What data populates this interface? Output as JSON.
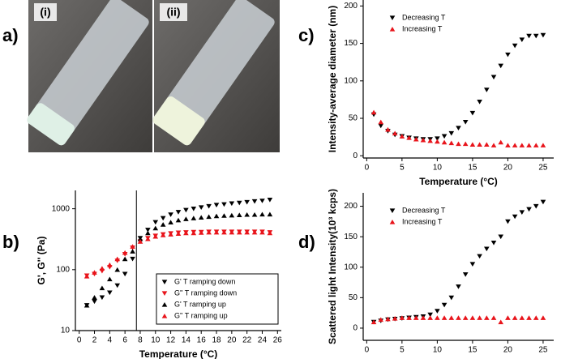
{
  "photos": {
    "panel_label": "a)",
    "labels": [
      "(i)",
      "(ii)"
    ]
  },
  "chart_data": [
    {
      "type": "scatter",
      "panel_label": "b)",
      "xlabel": "Temperature (°C)",
      "ylabel": "G', G'' (Pa)",
      "log_y": true,
      "legend": "lower right",
      "vline": 7.5,
      "xlim": [
        -0.5,
        26.5
      ],
      "ylim": [
        10,
        2000
      ],
      "xticks": [
        0,
        2,
        4,
        6,
        8,
        10,
        12,
        14,
        16,
        18,
        20,
        22,
        24,
        26
      ],
      "yticks": [
        10,
        100,
        1000
      ],
      "x": [
        1,
        2,
        3,
        4,
        5,
        6,
        7,
        8,
        9,
        10,
        11,
        12,
        13,
        14,
        15,
        16,
        17,
        18,
        19,
        20,
        21,
        22,
        23,
        24,
        25
      ],
      "series": [
        {
          "name": "G' T ramping down",
          "color": "#000000",
          "marker": "down",
          "values": [
            26,
            30,
            35,
            42,
            55,
            85,
            150,
            330,
            450,
            600,
            700,
            800,
            880,
            950,
            1000,
            1050,
            1100,
            1150,
            1180,
            1220,
            1250,
            1280,
            1320,
            1350,
            1400
          ]
        },
        {
          "name": "G'' T ramping down",
          "color": "#e8141b",
          "marker": "down",
          "values": [
            80,
            85,
            95,
            110,
            140,
            180,
            230,
            290,
            330,
            360,
            380,
            395,
            405,
            410,
            415,
            415,
            420,
            420,
            420,
            420,
            420,
            420,
            420,
            420,
            410
          ]
        },
        {
          "name": "G' T ramping up",
          "color": "#000000",
          "marker": "up",
          "values": [
            26,
            35,
            50,
            70,
            100,
            150,
            200,
            320,
            400,
            480,
            550,
            600,
            650,
            680,
            700,
            720,
            740,
            760,
            770,
            780,
            790,
            800,
            800,
            810,
            810
          ]
        },
        {
          "name": "G'' T ramping up",
          "color": "#e8141b",
          "marker": "up",
          "values": [
            78,
            90,
            105,
            120,
            150,
            190,
            240,
            290,
            320,
            350,
            370,
            380,
            390,
            400,
            400,
            405,
            410,
            410,
            410,
            410,
            410,
            410,
            410,
            410,
            400
          ]
        }
      ]
    },
    {
      "type": "scatter",
      "panel_label": "c)",
      "xlabel": "Temperature (°C)",
      "ylabel": "Intensity-average diameter (nm)",
      "log_y": false,
      "legend": "upper left",
      "xlim": [
        -0.5,
        26.5
      ],
      "ylim": [
        -3,
        208
      ],
      "xticks": [
        0,
        5,
        10,
        15,
        20,
        25
      ],
      "yticks": [
        0,
        50,
        100,
        150,
        200
      ],
      "x": [
        1,
        2,
        3,
        4,
        5,
        6,
        7,
        8,
        9,
        10,
        11,
        12,
        13,
        14,
        15,
        16,
        17,
        18,
        19,
        20,
        21,
        22,
        23,
        24,
        25
      ],
      "series": [
        {
          "name": "Decreasing T",
          "color": "#000000",
          "marker": "down",
          "values": [
            55,
            40,
            33,
            28,
            26,
            24,
            23,
            22,
            22,
            23,
            26,
            30,
            37,
            45,
            57,
            72,
            88,
            105,
            120,
            135,
            147,
            155,
            160,
            160,
            161
          ]
        },
        {
          "name": "Increasing T",
          "color": "#e8141b",
          "marker": "up",
          "values": [
            58,
            45,
            35,
            30,
            26,
            24,
            22,
            21,
            20,
            19,
            18,
            17,
            16,
            16,
            15,
            15,
            15,
            14,
            18,
            14,
            14,
            14,
            14,
            14,
            14
          ]
        }
      ]
    },
    {
      "type": "scatter",
      "panel_label": "d)",
      "xlabel": "Temperature (°C)",
      "ylabel": "Scattered light Intensity(10³ kcps)",
      "log_y": false,
      "legend": "upper left",
      "xlim": [
        -0.5,
        26.5
      ],
      "ylim": [
        -20,
        222
      ],
      "xticks": [
        0,
        5,
        10,
        15,
        20,
        25
      ],
      "yticks": [
        0,
        50,
        100,
        150,
        200
      ],
      "x": [
        1,
        2,
        3,
        4,
        5,
        6,
        7,
        8,
        9,
        10,
        11,
        12,
        13,
        14,
        15,
        16,
        17,
        18,
        19,
        20,
        21,
        22,
        23,
        24,
        25
      ],
      "series": [
        {
          "name": "Decreasing T",
          "color": "#000000",
          "marker": "down",
          "values": [
            10,
            12,
            14,
            15,
            16,
            17,
            18,
            19,
            22,
            28,
            38,
            50,
            68,
            88,
            105,
            118,
            130,
            140,
            150,
            175,
            183,
            190,
            195,
            200,
            207
          ]
        },
        {
          "name": "Increasing T",
          "color": "#e8141b",
          "marker": "up",
          "values": [
            10,
            14,
            15,
            16,
            17,
            17,
            17,
            17,
            17,
            17,
            17,
            17,
            17,
            17,
            17,
            17,
            17,
            17,
            10,
            17,
            17,
            17,
            17,
            17,
            17
          ]
        }
      ]
    }
  ]
}
